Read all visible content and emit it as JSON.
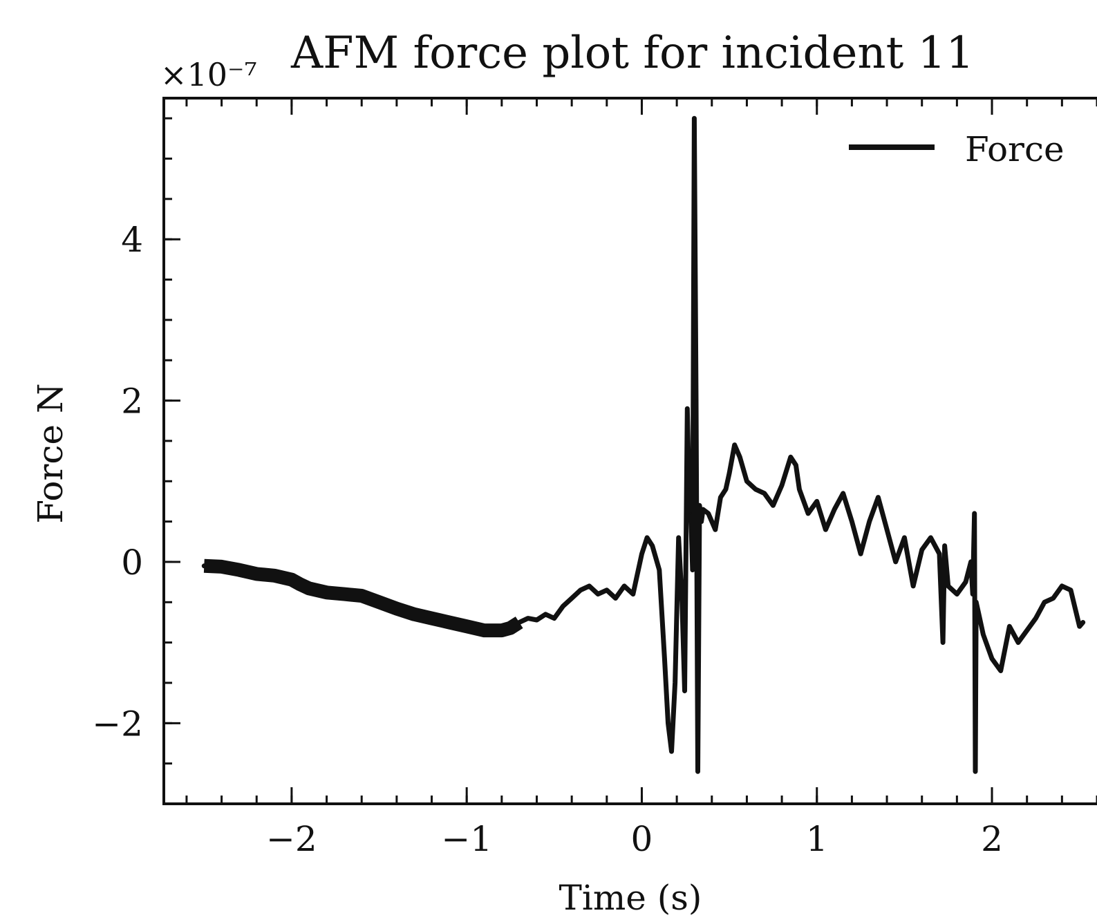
{
  "chart_data": {
    "type": "line",
    "title": "AFM force plot for incident 11",
    "xlabel": "Time (s)",
    "ylabel": "Force N",
    "y_offset_label": "×10⁻⁷",
    "xlim": [
      -2.73,
      2.6
    ],
    "ylim": [
      -3.0,
      5.75
    ],
    "y_scale_factor": 1e-07,
    "x_ticks": [
      -2,
      -1,
      0,
      1,
      2
    ],
    "x_tick_labels": [
      "−2",
      "−1",
      "0",
      "1",
      "2"
    ],
    "y_ticks": [
      -2,
      0,
      2,
      4
    ],
    "y_tick_labels": [
      "−2",
      "0",
      "2",
      "4"
    ],
    "x_minor_step": 0.2,
    "y_minor_step": 0.5,
    "grid": false,
    "legend": {
      "placement": "top-right",
      "entries": [
        "Force"
      ]
    },
    "color": "#111111",
    "series": [
      {
        "name": "Force",
        "x": [
          -2.5,
          -2.4,
          -2.3,
          -2.2,
          -2.1,
          -2.0,
          -1.95,
          -1.9,
          -1.8,
          -1.7,
          -1.6,
          -1.5,
          -1.4,
          -1.3,
          -1.2,
          -1.1,
          -1.0,
          -0.9,
          -0.8,
          -0.75,
          -0.7,
          -0.65,
          -0.6,
          -0.55,
          -0.5,
          -0.45,
          -0.4,
          -0.35,
          -0.3,
          -0.25,
          -0.2,
          -0.15,
          -0.1,
          -0.05,
          0.0,
          0.03,
          0.06,
          0.1,
          0.13,
          0.15,
          0.17,
          0.19,
          0.21,
          0.23,
          0.245,
          0.26,
          0.27,
          0.28,
          0.29,
          0.3,
          0.31,
          0.32,
          0.33,
          0.34,
          0.35,
          0.38,
          0.4,
          0.42,
          0.45,
          0.48,
          0.5,
          0.53,
          0.56,
          0.6,
          0.65,
          0.7,
          0.75,
          0.8,
          0.85,
          0.88,
          0.9,
          0.95,
          1.0,
          1.05,
          1.1,
          1.15,
          1.2,
          1.25,
          1.3,
          1.35,
          1.4,
          1.45,
          1.5,
          1.55,
          1.6,
          1.65,
          1.7,
          1.72,
          1.73,
          1.75,
          1.8,
          1.85,
          1.88,
          1.89,
          1.9,
          1.905,
          1.91,
          1.92,
          1.95,
          2.0,
          2.05,
          2.1,
          2.15,
          2.2,
          2.25,
          2.3,
          2.35,
          2.4,
          2.45,
          2.5,
          2.52
        ],
        "values": [
          -0.05,
          -0.06,
          -0.1,
          -0.15,
          -0.17,
          -0.22,
          -0.28,
          -0.33,
          -0.38,
          -0.4,
          -0.42,
          -0.5,
          -0.58,
          -0.65,
          -0.7,
          -0.75,
          -0.8,
          -0.85,
          -0.85,
          -0.82,
          -0.75,
          -0.7,
          -0.72,
          -0.65,
          -0.7,
          -0.55,
          -0.45,
          -0.35,
          -0.3,
          -0.4,
          -0.35,
          -0.45,
          -0.3,
          -0.4,
          0.1,
          0.3,
          0.2,
          -0.1,
          -1.2,
          -2.0,
          -2.35,
          -1.5,
          0.3,
          -0.5,
          -1.6,
          1.9,
          0.9,
          0.6,
          -0.1,
          5.5,
          2.0,
          -2.6,
          0.7,
          0.5,
          0.65,
          0.6,
          0.5,
          0.4,
          0.8,
          0.9,
          1.1,
          1.45,
          1.3,
          1.0,
          0.9,
          0.85,
          0.7,
          0.95,
          1.3,
          1.2,
          0.9,
          0.6,
          0.75,
          0.4,
          0.65,
          0.85,
          0.5,
          0.1,
          0.5,
          0.8,
          0.4,
          0.0,
          0.3,
          -0.3,
          0.15,
          0.3,
          0.1,
          -1.0,
          0.2,
          -0.3,
          -0.4,
          -0.25,
          0.0,
          -0.4,
          0.6,
          -2.6,
          -0.5,
          -0.6,
          -0.9,
          -1.2,
          -1.35,
          -0.8,
          -1.0,
          -0.85,
          -0.7,
          -0.5,
          -0.45,
          -0.3,
          -0.35,
          -0.8,
          -0.75
        ]
      }
    ]
  }
}
